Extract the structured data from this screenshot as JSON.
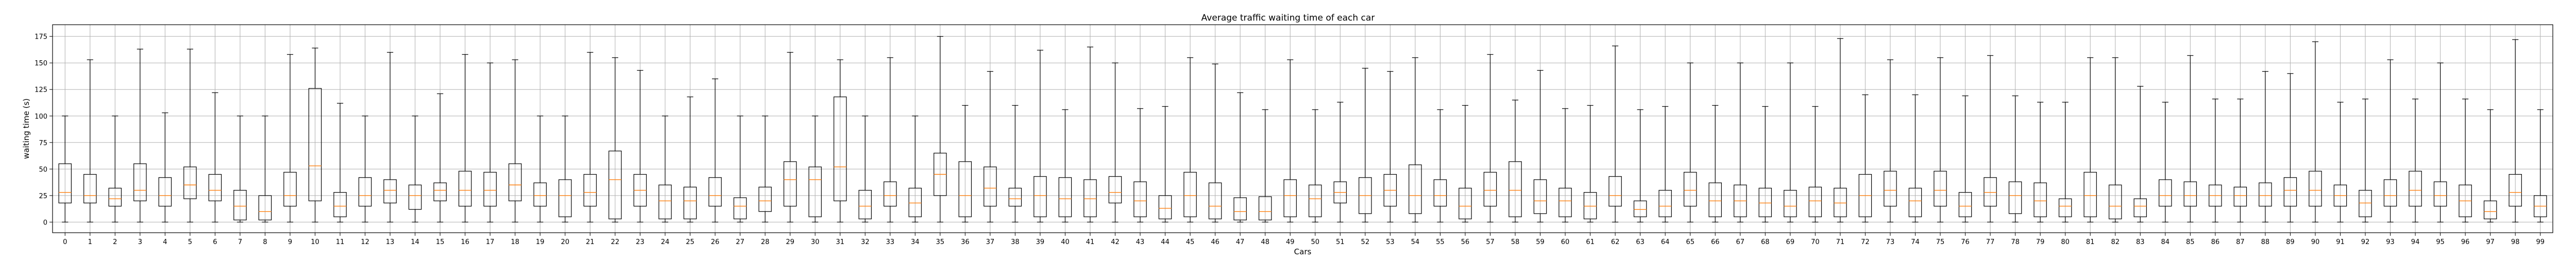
{
  "chart_data": {
    "type": "box",
    "title": "Average traffic waiting time of each car",
    "xlabel": "Cars",
    "ylabel": "waiting time (s)",
    "ylim": [
      -10,
      186
    ],
    "yticks": [
      0,
      25,
      50,
      75,
      100,
      125,
      150,
      175
    ],
    "grid": true,
    "legend": "none",
    "colors": {
      "box": "#000000",
      "median": "#ff7f0e",
      "grid": "#b0b0b0"
    },
    "series": [
      {
        "x": "0",
        "q1": 18,
        "median": 28,
        "q3": 55,
        "whisker_low": 0,
        "whisker_high": 100
      },
      {
        "x": "1",
        "q1": 18,
        "median": 25,
        "q3": 45,
        "whisker_low": 0,
        "whisker_high": 153
      },
      {
        "x": "2",
        "q1": 15,
        "median": 22,
        "q3": 32,
        "whisker_low": 0,
        "whisker_high": 100
      },
      {
        "x": "3",
        "q1": 20,
        "median": 30,
        "q3": 55,
        "whisker_low": 0,
        "whisker_high": 163
      },
      {
        "x": "4",
        "q1": 15,
        "median": 25,
        "q3": 42,
        "whisker_low": 0,
        "whisker_high": 103
      },
      {
        "x": "5",
        "q1": 22,
        "median": 35,
        "q3": 52,
        "whisker_low": 0,
        "whisker_high": 163
      },
      {
        "x": "6",
        "q1": 20,
        "median": 30,
        "q3": 45,
        "whisker_low": 0,
        "whisker_high": 122
      },
      {
        "x": "7",
        "q1": 2,
        "median": 15,
        "q3": 30,
        "whisker_low": 0,
        "whisker_high": 100
      },
      {
        "x": "8",
        "q1": 2,
        "median": 10,
        "q3": 25,
        "whisker_low": 0,
        "whisker_high": 100
      },
      {
        "x": "9",
        "q1": 15,
        "median": 25,
        "q3": 47,
        "whisker_low": 0,
        "whisker_high": 158
      },
      {
        "x": "10",
        "q1": 20,
        "median": 53,
        "q3": 126,
        "whisker_low": 0,
        "whisker_high": 164
      },
      {
        "x": "11",
        "q1": 5,
        "median": 15,
        "q3": 28,
        "whisker_low": 0,
        "whisker_high": 112
      },
      {
        "x": "12",
        "q1": 15,
        "median": 25,
        "q3": 42,
        "whisker_low": 0,
        "whisker_high": 100
      },
      {
        "x": "13",
        "q1": 18,
        "median": 30,
        "q3": 40,
        "whisker_low": 0,
        "whisker_high": 160
      },
      {
        "x": "14",
        "q1": 12,
        "median": 25,
        "q3": 35,
        "whisker_low": 0,
        "whisker_high": 100
      },
      {
        "x": "15",
        "q1": 20,
        "median": 30,
        "q3": 37,
        "whisker_low": 0,
        "whisker_high": 121
      },
      {
        "x": "16",
        "q1": 15,
        "median": 30,
        "q3": 48,
        "whisker_low": 0,
        "whisker_high": 158
      },
      {
        "x": "17",
        "q1": 15,
        "median": 30,
        "q3": 47,
        "whisker_low": 0,
        "whisker_high": 150
      },
      {
        "x": "18",
        "q1": 20,
        "median": 35,
        "q3": 55,
        "whisker_low": 0,
        "whisker_high": 153
      },
      {
        "x": "19",
        "q1": 15,
        "median": 25,
        "q3": 37,
        "whisker_low": 0,
        "whisker_high": 100
      },
      {
        "x": "20",
        "q1": 5,
        "median": 25,
        "q3": 40,
        "whisker_low": 0,
        "whisker_high": 100
      },
      {
        "x": "21",
        "q1": 15,
        "median": 28,
        "q3": 45,
        "whisker_low": 0,
        "whisker_high": 160
      },
      {
        "x": "22",
        "q1": 3,
        "median": 40,
        "q3": 67,
        "whisker_low": 0,
        "whisker_high": 155
      },
      {
        "x": "23",
        "q1": 15,
        "median": 30,
        "q3": 45,
        "whisker_low": 0,
        "whisker_high": 143
      },
      {
        "x": "24",
        "q1": 3,
        "median": 20,
        "q3": 35,
        "whisker_low": 0,
        "whisker_high": 100
      },
      {
        "x": "25",
        "q1": 3,
        "median": 20,
        "q3": 33,
        "whisker_low": 0,
        "whisker_high": 118
      },
      {
        "x": "26",
        "q1": 15,
        "median": 25,
        "q3": 42,
        "whisker_low": 0,
        "whisker_high": 135
      },
      {
        "x": "27",
        "q1": 3,
        "median": 15,
        "q3": 23,
        "whisker_low": 0,
        "whisker_high": 100
      },
      {
        "x": "28",
        "q1": 10,
        "median": 20,
        "q3": 33,
        "whisker_low": 0,
        "whisker_high": 100
      },
      {
        "x": "29",
        "q1": 15,
        "median": 40,
        "q3": 57,
        "whisker_low": 0,
        "whisker_high": 160
      },
      {
        "x": "30",
        "q1": 5,
        "median": 40,
        "q3": 52,
        "whisker_low": 0,
        "whisker_high": 100
      },
      {
        "x": "31",
        "q1": 20,
        "median": 52,
        "q3": 118,
        "whisker_low": 0,
        "whisker_high": 153
      },
      {
        "x": "32",
        "q1": 3,
        "median": 15,
        "q3": 30,
        "whisker_low": 0,
        "whisker_high": 100
      },
      {
        "x": "33",
        "q1": 15,
        "median": 25,
        "q3": 38,
        "whisker_low": 0,
        "whisker_high": 155
      },
      {
        "x": "34",
        "q1": 5,
        "median": 18,
        "q3": 32,
        "whisker_low": 0,
        "whisker_high": 100
      },
      {
        "x": "35",
        "q1": 25,
        "median": 45,
        "q3": 65,
        "whisker_low": 0,
        "whisker_high": 175
      },
      {
        "x": "36",
        "q1": 5,
        "median": 25,
        "q3": 57,
        "whisker_low": 0,
        "whisker_high": 110
      },
      {
        "x": "37",
        "q1": 15,
        "median": 32,
        "q3": 52,
        "whisker_low": 0,
        "whisker_high": 142
      },
      {
        "x": "38",
        "q1": 15,
        "median": 22,
        "q3": 32,
        "whisker_low": 0,
        "whisker_high": 110
      },
      {
        "x": "39",
        "q1": 5,
        "median": 25,
        "q3": 43,
        "whisker_low": 0,
        "whisker_high": 162
      },
      {
        "x": "40",
        "q1": 5,
        "median": 22,
        "q3": 42,
        "whisker_low": 0,
        "whisker_high": 106
      },
      {
        "x": "41",
        "q1": 5,
        "median": 22,
        "q3": 40,
        "whisker_low": 0,
        "whisker_high": 165
      },
      {
        "x": "42",
        "q1": 18,
        "median": 28,
        "q3": 43,
        "whisker_low": 0,
        "whisker_high": 150
      },
      {
        "x": "43",
        "q1": 5,
        "median": 20,
        "q3": 38,
        "whisker_low": 0,
        "whisker_high": 107
      },
      {
        "x": "44",
        "q1": 3,
        "median": 13,
        "q3": 25,
        "whisker_low": 0,
        "whisker_high": 109
      },
      {
        "x": "45",
        "q1": 5,
        "median": 25,
        "q3": 47,
        "whisker_low": 0,
        "whisker_high": 155
      },
      {
        "x": "46",
        "q1": 3,
        "median": 15,
        "q3": 37,
        "whisker_low": 0,
        "whisker_high": 149
      },
      {
        "x": "47",
        "q1": 2,
        "median": 10,
        "q3": 23,
        "whisker_low": 0,
        "whisker_high": 122
      },
      {
        "x": "48",
        "q1": 2,
        "median": 10,
        "q3": 24,
        "whisker_low": 0,
        "whisker_high": 106
      },
      {
        "x": "49",
        "q1": 5,
        "median": 25,
        "q3": 40,
        "whisker_low": 0,
        "whisker_high": 153
      },
      {
        "x": "50",
        "q1": 5,
        "median": 22,
        "q3": 35,
        "whisker_low": 0,
        "whisker_high": 106
      },
      {
        "x": "51",
        "q1": 18,
        "median": 28,
        "q3": 38,
        "whisker_low": 0,
        "whisker_high": 113
      },
      {
        "x": "52",
        "q1": 8,
        "median": 25,
        "q3": 42,
        "whisker_low": 0,
        "whisker_high": 145
      },
      {
        "x": "53",
        "q1": 15,
        "median": 30,
        "q3": 45,
        "whisker_low": 0,
        "whisker_high": 142
      },
      {
        "x": "54",
        "q1": 8,
        "median": 25,
        "q3": 54,
        "whisker_low": 0,
        "whisker_high": 155
      },
      {
        "x": "55",
        "q1": 15,
        "median": 25,
        "q3": 40,
        "whisker_low": 0,
        "whisker_high": 106
      },
      {
        "x": "56",
        "q1": 3,
        "median": 15,
        "q3": 32,
        "whisker_low": 0,
        "whisker_high": 110
      },
      {
        "x": "57",
        "q1": 15,
        "median": 30,
        "q3": 47,
        "whisker_low": 0,
        "whisker_high": 158
      },
      {
        "x": "58",
        "q1": 5,
        "median": 30,
        "q3": 57,
        "whisker_low": 0,
        "whisker_high": 115
      },
      {
        "x": "59",
        "q1": 8,
        "median": 20,
        "q3": 40,
        "whisker_low": 0,
        "whisker_high": 143
      },
      {
        "x": "60",
        "q1": 5,
        "median": 20,
        "q3": 32,
        "whisker_low": 0,
        "whisker_high": 107
      },
      {
        "x": "61",
        "q1": 3,
        "median": 15,
        "q3": 28,
        "whisker_low": 0,
        "whisker_high": 110
      },
      {
        "x": "62",
        "q1": 15,
        "median": 25,
        "q3": 43,
        "whisker_low": 0,
        "whisker_high": 166
      },
      {
        "x": "63",
        "q1": 5,
        "median": 12,
        "q3": 20,
        "whisker_low": 0,
        "whisker_high": 106
      },
      {
        "x": "64",
        "q1": 5,
        "median": 15,
        "q3": 30,
        "whisker_low": 0,
        "whisker_high": 109
      },
      {
        "x": "65",
        "q1": 15,
        "median": 30,
        "q3": 47,
        "whisker_low": 0,
        "whisker_high": 150
      },
      {
        "x": "66",
        "q1": 5,
        "median": 20,
        "q3": 37,
        "whisker_low": 0,
        "whisker_high": 110
      },
      {
        "x": "67",
        "q1": 5,
        "median": 20,
        "q3": 35,
        "whisker_low": 0,
        "whisker_high": 150
      },
      {
        "x": "68",
        "q1": 5,
        "median": 18,
        "q3": 32,
        "whisker_low": 0,
        "whisker_high": 109
      },
      {
        "x": "69",
        "q1": 5,
        "median": 15,
        "q3": 30,
        "whisker_low": 0,
        "whisker_high": 150
      },
      {
        "x": "70",
        "q1": 5,
        "median": 20,
        "q3": 33,
        "whisker_low": 0,
        "whisker_high": 109
      },
      {
        "x": "71",
        "q1": 5,
        "median": 18,
        "q3": 32,
        "whisker_low": 0,
        "whisker_high": 173
      },
      {
        "x": "72",
        "q1": 5,
        "median": 25,
        "q3": 45,
        "whisker_low": 0,
        "whisker_high": 120
      },
      {
        "x": "73",
        "q1": 15,
        "median": 30,
        "q3": 48,
        "whisker_low": 0,
        "whisker_high": 153
      },
      {
        "x": "74",
        "q1": 5,
        "median": 20,
        "q3": 32,
        "whisker_low": 0,
        "whisker_high": 120
      },
      {
        "x": "75",
        "q1": 15,
        "median": 30,
        "q3": 48,
        "whisker_low": 0,
        "whisker_high": 155
      },
      {
        "x": "76",
        "q1": 5,
        "median": 15,
        "q3": 28,
        "whisker_low": 0,
        "whisker_high": 119
      },
      {
        "x": "77",
        "q1": 15,
        "median": 28,
        "q3": 42,
        "whisker_low": 0,
        "whisker_high": 157
      },
      {
        "x": "78",
        "q1": 8,
        "median": 25,
        "q3": 38,
        "whisker_low": 0,
        "whisker_high": 119
      },
      {
        "x": "79",
        "q1": 5,
        "median": 20,
        "q3": 37,
        "whisker_low": 0,
        "whisker_high": 113
      },
      {
        "x": "80",
        "q1": 5,
        "median": 15,
        "q3": 22,
        "whisker_low": 0,
        "whisker_high": 113
      },
      {
        "x": "81",
        "q1": 5,
        "median": 25,
        "q3": 47,
        "whisker_low": 0,
        "whisker_high": 155
      },
      {
        "x": "82",
        "q1": 3,
        "median": 15,
        "q3": 35,
        "whisker_low": 0,
        "whisker_high": 155
      },
      {
        "x": "83",
        "q1": 5,
        "median": 15,
        "q3": 22,
        "whisker_low": 0,
        "whisker_high": 128
      },
      {
        "x": "84",
        "q1": 15,
        "median": 25,
        "q3": 40,
        "whisker_low": 0,
        "whisker_high": 113
      },
      {
        "x": "85",
        "q1": 15,
        "median": 25,
        "q3": 38,
        "whisker_low": 0,
        "whisker_high": 157
      },
      {
        "x": "86",
        "q1": 15,
        "median": 25,
        "q3": 35,
        "whisker_low": 0,
        "whisker_high": 116
      },
      {
        "x": "87",
        "q1": 15,
        "median": 25,
        "q3": 33,
        "whisker_low": 0,
        "whisker_high": 116
      },
      {
        "x": "88",
        "q1": 15,
        "median": 25,
        "q3": 37,
        "whisker_low": 0,
        "whisker_high": 142
      },
      {
        "x": "89",
        "q1": 15,
        "median": 30,
        "q3": 42,
        "whisker_low": 0,
        "whisker_high": 140
      },
      {
        "x": "90",
        "q1": 15,
        "median": 30,
        "q3": 48,
        "whisker_low": 0,
        "whisker_high": 170
      },
      {
        "x": "91",
        "q1": 15,
        "median": 25,
        "q3": 35,
        "whisker_low": 0,
        "whisker_high": 113
      },
      {
        "x": "92",
        "q1": 5,
        "median": 18,
        "q3": 30,
        "whisker_low": 0,
        "whisker_high": 116
      },
      {
        "x": "93",
        "q1": 15,
        "median": 25,
        "q3": 40,
        "whisker_low": 0,
        "whisker_high": 153
      },
      {
        "x": "94",
        "q1": 15,
        "median": 30,
        "q3": 48,
        "whisker_low": 0,
        "whisker_high": 116
      },
      {
        "x": "95",
        "q1": 15,
        "median": 25,
        "q3": 38,
        "whisker_low": 0,
        "whisker_high": 150
      },
      {
        "x": "96",
        "q1": 5,
        "median": 20,
        "q3": 35,
        "whisker_low": 0,
        "whisker_high": 116
      },
      {
        "x": "97",
        "q1": 3,
        "median": 10,
        "q3": 20,
        "whisker_low": 0,
        "whisker_high": 106
      },
      {
        "x": "98",
        "q1": 15,
        "median": 28,
        "q3": 45,
        "whisker_low": 0,
        "whisker_high": 172
      },
      {
        "x": "99",
        "q1": 5,
        "median": 15,
        "q3": 25,
        "whisker_low": 0,
        "whisker_high": 106
      }
    ]
  }
}
